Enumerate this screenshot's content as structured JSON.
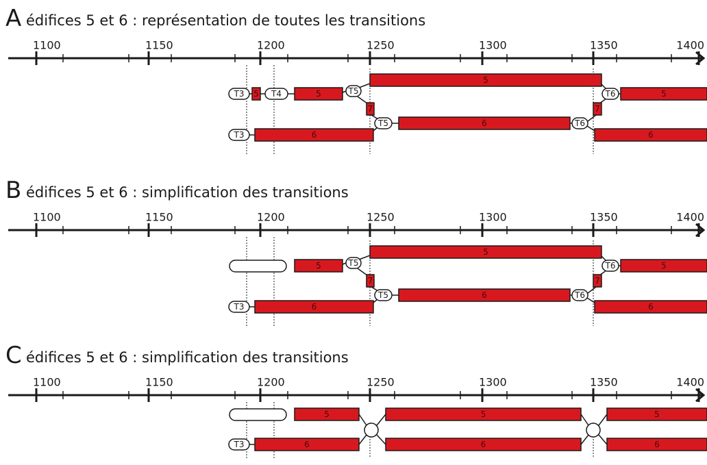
{
  "panels": [
    {
      "letter": "A",
      "title": "édifices 5 et 6 : représentation de toutes les transitions",
      "ticks": [
        "1100",
        "1150",
        "1200",
        "1250",
        "1300",
        "1350",
        "1400"
      ],
      "items": [
        "T3",
        "5",
        "T4",
        "5",
        "T5",
        "5",
        "T6",
        "5",
        "7",
        "T5",
        "6",
        "T6",
        "7",
        "T3",
        "6",
        "6"
      ]
    },
    {
      "letter": "B",
      "title": "édifices 5 et 6 :  simplification des transitions",
      "ticks": [
        "1100",
        "1150",
        "1200",
        "1250",
        "1300",
        "1350",
        "1400"
      ],
      "items": [
        "5",
        "T5",
        "5",
        "T6",
        "5",
        "7",
        "T5",
        "6",
        "T6",
        "7",
        "T3",
        "6",
        "6"
      ]
    },
    {
      "letter": "C",
      "title": "édifices 5 et 6 :  simplification des transitions",
      "ticks": [
        "1100",
        "1150",
        "1200",
        "1250",
        "1300",
        "1350",
        "1400"
      ],
      "items": [
        "5",
        "5",
        "5",
        "T3",
        "6",
        "6",
        "6"
      ]
    }
  ]
}
